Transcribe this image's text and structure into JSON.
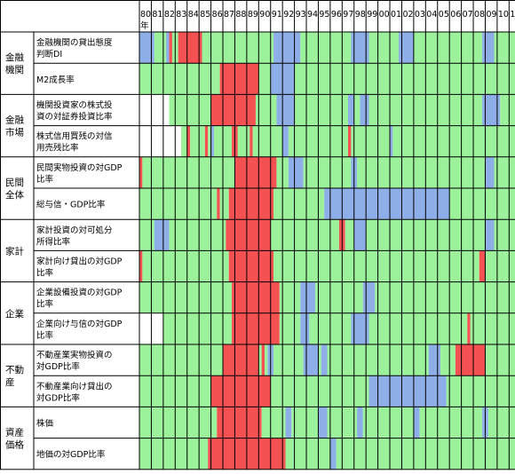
{
  "chart_data": {
    "type": "heatmap",
    "title": "",
    "year_labels": [
      "80",
      "81",
      "82",
      "83",
      "84",
      "85",
      "86",
      "87",
      "88",
      "89",
      "90",
      "91",
      "92",
      "93",
      "94",
      "95",
      "96",
      "97",
      "98",
      "99",
      "00",
      "01",
      "02",
      "03",
      "04",
      "05",
      "06",
      "07",
      "08",
      "09",
      "10",
      "11",
      "12",
      "13",
      "14"
    ],
    "first_year_suffix": "年",
    "quarter_range": {
      "start": "1980Q1",
      "end": "2014Q1"
    },
    "legend_note": "",
    "colors": {
      "green": "#9bf29b",
      "red": "#f45252",
      "blue": "#8eaee8",
      "blank": "#ffffff",
      "grid": "#000000"
    },
    "groups": [
      {
        "label_lines": [
          "金融",
          "機関"
        ],
        "rows": [
          0,
          1
        ]
      },
      {
        "label_lines": [
          "金融",
          "市場"
        ],
        "rows": [
          2,
          3
        ]
      },
      {
        "label_lines": [
          "民間",
          "全体"
        ],
        "rows": [
          4,
          5
        ]
      },
      {
        "label_lines": [
          "家計"
        ],
        "rows": [
          6,
          7
        ]
      },
      {
        "label_lines": [
          "企業"
        ],
        "rows": [
          8,
          9
        ]
      },
      {
        "label_lines": [
          "不動",
          "産"
        ],
        "rows": [
          10,
          11
        ]
      },
      {
        "label_lines": [
          "資産",
          "価格"
        ],
        "rows": [
          12,
          13
        ]
      }
    ],
    "rows": [
      {
        "label_lines": [
          "金融機関の貸出態度",
          "判断DI"
        ],
        "blank_before": "1980Q1",
        "red": [
          [
            "1982Q3",
            "1982Q3"
          ],
          [
            "1983Q2",
            "1985Q1"
          ]
        ],
        "blue": [
          [
            "1980Q1",
            "1981Q1"
          ],
          [
            "1982Q2",
            "1982Q2"
          ],
          [
            "1991Q2",
            "1993Q2"
          ],
          [
            "1997Q4",
            "1999Q1"
          ],
          [
            "2001Q4",
            "2002Q4"
          ],
          [
            "2008Q4",
            "2009Q3"
          ]
        ]
      },
      {
        "label_lines": [
          "M2成長率"
        ],
        "blank_before": "1980Q1",
        "red": [
          [
            "1986Q4",
            "1989Q4"
          ]
        ],
        "blue": [
          [
            "1991Q1",
            "1992Q4"
          ]
        ]
      },
      {
        "label_lines": [
          "機関投資家の株式投",
          "資の対証券投資比率"
        ],
        "blank_before": "1982Q3",
        "red": [
          [
            "1986Q1",
            "1989Q3"
          ]
        ],
        "blue": [
          [
            "1991Q3",
            "1992Q4"
          ],
          [
            "1997Q3",
            "1997Q4"
          ],
          [
            "1998Q3",
            "1999Q1"
          ],
          [
            "2008Q4",
            "2010Q1"
          ]
        ]
      },
      {
        "label_lines": [
          "株式信用買残の対信",
          "用売残比率"
        ],
        "blank_before": "1983Q3",
        "red": [
          [
            "1984Q1",
            "1984Q1"
          ],
          [
            "1985Q3",
            "1985Q3"
          ],
          [
            "1987Q4",
            "1988Q1"
          ],
          [
            "1989Q2",
            "1989Q2"
          ],
          [
            "1997Q3",
            "1997Q3"
          ],
          [
            "2013Q2",
            "2013Q2"
          ]
        ],
        "blue": [
          [
            "1986Q1",
            "1986Q1"
          ],
          [
            "1992Q1",
            "1992Q2"
          ],
          [
            "2001Q1",
            "2001Q1"
          ]
        ]
      },
      {
        "label_lines": [
          "民間実物投資の対GDP",
          "比率"
        ],
        "blank_before": "1980Q1",
        "red": [
          [
            "1980Q1",
            "1980Q1"
          ],
          [
            "1988Q1",
            "1991Q2"
          ]
        ],
        "blue": [
          [
            "1992Q3",
            "1993Q3"
          ],
          [
            "1997Q4",
            "1998Q1"
          ],
          [
            "2009Q1",
            "2009Q3"
          ]
        ]
      },
      {
        "label_lines": [
          "総与信・GDP比率"
        ],
        "blank_before": "1980Q1",
        "red": [
          [
            "1986Q3",
            "1986Q3"
          ],
          [
            "1987Q3",
            "1991Q1"
          ]
        ],
        "blue": [
          [
            "1995Q3",
            "2005Q4"
          ]
        ]
      },
      {
        "label_lines": [
          "家計投資の対可処分",
          "所得比率"
        ],
        "blank_before": "1980Q1",
        "red": [
          [
            "1987Q2",
            "1990Q4"
          ],
          [
            "1996Q4",
            "1997Q1"
          ]
        ],
        "blue": [
          [
            "1981Q2",
            "1982Q2"
          ],
          [
            "1998Q1",
            "1998Q4"
          ],
          [
            "2009Q1",
            "2009Q3"
          ]
        ]
      },
      {
        "label_lines": [
          "家計向け貸出の対GDP",
          "比率"
        ],
        "blank_before": "1980Q1",
        "red": [
          [
            "1980Q1",
            "1980Q1"
          ],
          [
            "1987Q3",
            "1991Q1"
          ],
          [
            "2008Q3",
            "2008Q4"
          ]
        ],
        "blue": []
      },
      {
        "label_lines": [
          "企業設備投資の対GDP",
          "比率"
        ],
        "blank_before": "1980Q1",
        "red": [
          [
            "1987Q4",
            "1991Q3"
          ]
        ],
        "blue": [
          [
            "1993Q3",
            "1994Q3"
          ],
          [
            "1998Q4",
            "1999Q3"
          ]
        ]
      },
      {
        "label_lines": [
          "企業向け与信の対GDP",
          "比率"
        ],
        "blank_before": "1982Q1",
        "red": [
          [
            "1987Q4",
            "1991Q3"
          ],
          [
            "2007Q3",
            "2007Q3"
          ]
        ],
        "blue": [
          [
            "1993Q3",
            "1994Q1"
          ],
          [
            "1997Q4",
            "1999Q1"
          ]
        ]
      },
      {
        "label_lines": [
          "不動産業実物投資の",
          "対GDP比率"
        ],
        "blank_before": "1980Q1",
        "red": [
          [
            "1987Q1",
            "1989Q4"
          ],
          [
            "1990Q2",
            "1990Q2"
          ],
          [
            "2006Q3",
            "2008Q4"
          ]
        ],
        "blue": [
          [
            "1990Q4",
            "1991Q1"
          ],
          [
            "1993Q4",
            "1994Q4"
          ],
          [
            "1995Q2",
            "1995Q3"
          ],
          [
            "2004Q2",
            "2005Q1"
          ]
        ]
      },
      {
        "label_lines": [
          "不動産業向け貸出の",
          "対GDP比率"
        ],
        "blank_before": "1980Q1",
        "red": [
          [
            "1986Q1",
            "1990Q4"
          ]
        ],
        "blue": [
          [
            "1999Q2",
            "2005Q3"
          ]
        ]
      },
      {
        "label_lines": [
          "株価"
        ],
        "blank_before": "1980Q1",
        "red": [
          [
            "1986Q3",
            "1990Q1"
          ]
        ],
        "blue": [
          [
            "1992Q2",
            "1992Q3"
          ],
          [
            "1995Q1",
            "1995Q3"
          ],
          [
            "1998Q2",
            "1998Q3"
          ],
          [
            "2003Q1",
            "2003Q2"
          ],
          [
            "2008Q4",
            "2009Q1"
          ]
        ]
      },
      {
        "label_lines": [
          "地価の対GDP比率"
        ],
        "blank_before": "1980Q1",
        "red": [
          [
            "1985Q4",
            "1992Q1"
          ]
        ],
        "blue": [
          [
            "1996Q1",
            "1996Q2"
          ]
        ]
      }
    ]
  }
}
